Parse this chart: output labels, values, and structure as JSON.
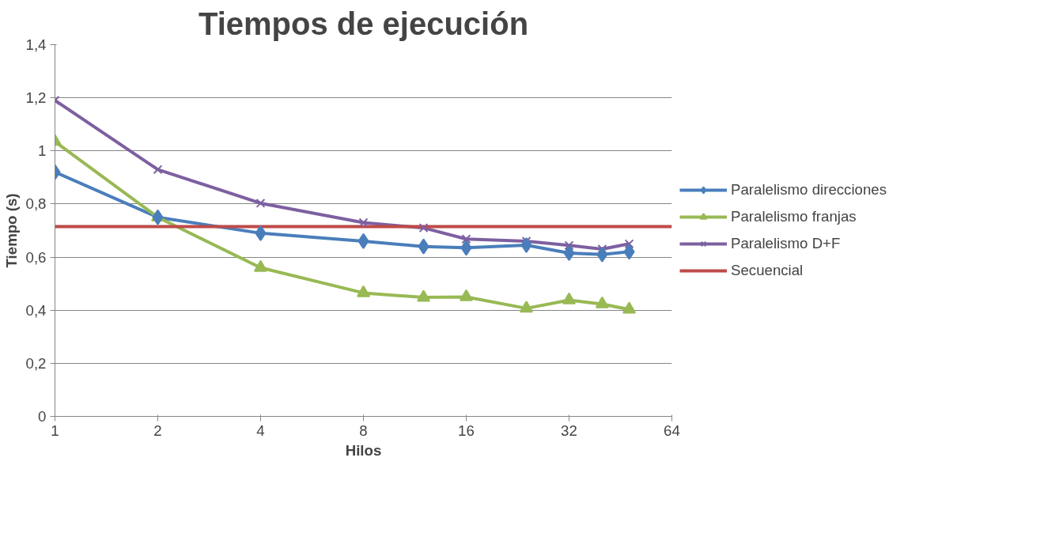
{
  "chart_data": {
    "type": "line",
    "title": "Tiempos de ejecución",
    "xlabel": "Hilos",
    "ylabel": "Tiempo (s)",
    "x": [
      1,
      2,
      4,
      8,
      12,
      16,
      24,
      32,
      40,
      48
    ],
    "log": "x",
    "xlim": [
      1,
      64
    ],
    "xticks": [
      1,
      2,
      4,
      8,
      16,
      32,
      64
    ],
    "ylim": [
      0,
      1.4
    ],
    "yticks": [
      0,
      {
        "value": 0.2,
        "label": "0,2"
      },
      {
        "value": 0.4,
        "label": "0,4"
      },
      {
        "value": 0.6,
        "label": "0,6"
      },
      {
        "value": 0.8,
        "label": "0,8"
      },
      1,
      {
        "value": 1.2,
        "label": "1,2"
      },
      {
        "value": 1.4,
        "label": "1,4"
      }
    ],
    "grid": "y",
    "legend": "right",
    "series": [
      {
        "name": "Paralelismo direcciones",
        "color": "#4a7ebb",
        "marker": "diamond",
        "values": [
          0.92,
          0.75,
          0.69,
          0.66,
          0.64,
          0.635,
          0.645,
          0.615,
          0.61,
          0.62
        ]
      },
      {
        "name": "Paralelismo franjas",
        "color": "#98b954",
        "marker": "triangle",
        "values": [
          1.035,
          0.75,
          0.56,
          0.465,
          0.448,
          0.45,
          0.407,
          0.438,
          0.423,
          0.403
        ]
      },
      {
        "name": "Paralelismo D+F",
        "color": "#7d60a0",
        "marker": "cross",
        "values": [
          1.19,
          0.93,
          0.803,
          0.73,
          0.71,
          0.668,
          0.66,
          0.644,
          0.63,
          0.65
        ]
      },
      {
        "name": "Secuencial",
        "color": "#be4b48",
        "marker": "none",
        "x": [
          1,
          64
        ],
        "values": [
          0.715,
          0.715
        ]
      }
    ]
  }
}
